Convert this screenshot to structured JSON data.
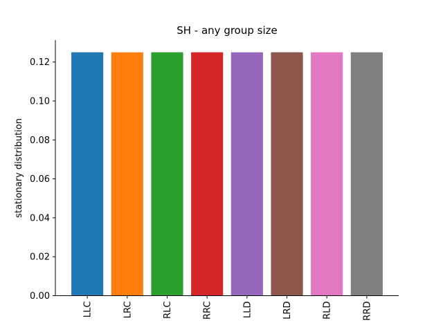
{
  "chart_data": {
    "type": "bar",
    "title": "SH - any group size",
    "xlabel": "",
    "ylabel": "stationary distribution",
    "categories": [
      "LLC",
      "LRC",
      "RLC",
      "RRC",
      "LLD",
      "LRD",
      "RLD",
      "RRD"
    ],
    "values": [
      0.125,
      0.125,
      0.125,
      0.125,
      0.125,
      0.125,
      0.125,
      0.125
    ],
    "colors": [
      "#1f77b4",
      "#ff7f0e",
      "#2ca02c",
      "#d62728",
      "#9467bd",
      "#8c564b",
      "#e377c2",
      "#7f7f7f"
    ],
    "ylim": [
      0,
      0.13125
    ],
    "yticks": [
      "0.00",
      "0.02",
      "0.04",
      "0.06",
      "0.08",
      "0.10",
      "0.12"
    ],
    "grid": false,
    "legend": "none"
  }
}
